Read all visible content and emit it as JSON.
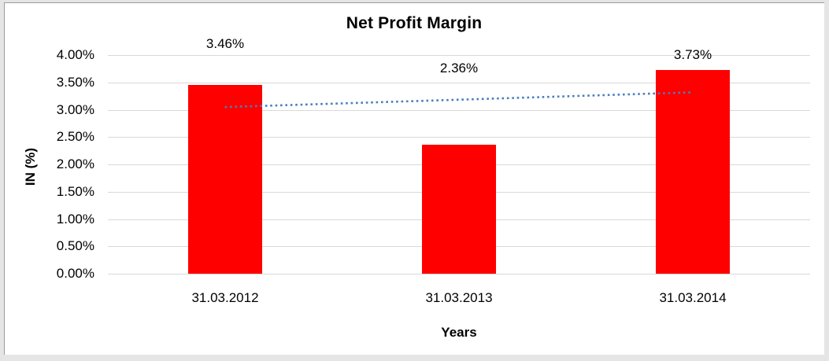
{
  "window": {
    "background_color": "#e5e5e5",
    "chart_background_color": "#ffffff"
  },
  "chart_data": {
    "type": "bar",
    "title": "Net Profit Margin",
    "xlabel": "Years",
    "ylabel": "IN (%)",
    "categories": [
      "31.03.2012",
      "31.03.2013",
      "31.03.2014"
    ],
    "values": [
      3.46,
      2.36,
      3.73
    ],
    "data_labels": [
      "3.46%",
      "2.36%",
      "3.73%"
    ],
    "ylim": [
      0,
      4
    ],
    "ytick_step": 0.5,
    "ytick_labels": [
      "0.00%",
      "0.50%",
      "1.00%",
      "1.50%",
      "2.00%",
      "2.50%",
      "3.00%",
      "3.50%",
      "4.00%"
    ],
    "grid": true,
    "legend": "none",
    "bar_color": "#ff0000",
    "gridline_color": "#d9d9d9",
    "trendline": {
      "type": "linear",
      "style": "dotted",
      "color": "#4a7ebb"
    }
  }
}
